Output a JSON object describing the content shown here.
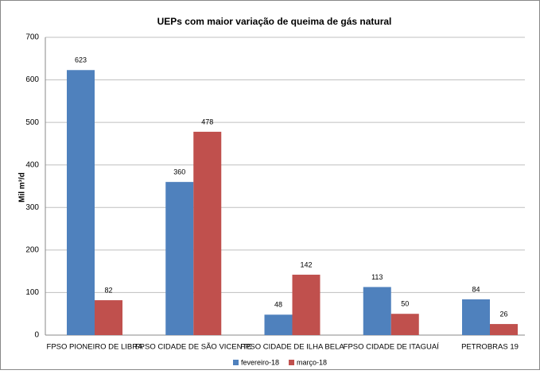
{
  "chart_data": {
    "type": "bar",
    "title": "UEPs com maior variação de queima de gás natural",
    "y_label": "Mil m³/d",
    "categories": [
      "FPSO PIONEIRO DE LIBRA",
      "FPSO CIDADE DE SÃO VICENTE",
      "FPSO CIDADE DE ILHA BELA",
      "FPSO CIDADE DE ITAGUAÍ",
      "PETROBRAS 19"
    ],
    "series": [
      {
        "name": "fevereiro-18",
        "color": "#4f81bd",
        "values": [
          623,
          360,
          48,
          113,
          84
        ]
      },
      {
        "name": "março-18",
        "color": "#c0504d",
        "values": [
          82,
          478,
          142,
          50,
          26
        ]
      }
    ],
    "ylim": [
      0,
      700
    ],
    "yticks": [
      0,
      100,
      200,
      300,
      400,
      500,
      600,
      700
    ],
    "grid": true,
    "legend": "bottom"
  }
}
